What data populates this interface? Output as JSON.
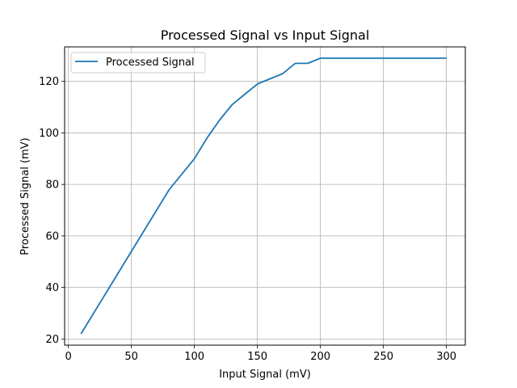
{
  "chart_data": {
    "type": "line",
    "title": "Processed Signal vs Input Signal",
    "xlabel": "Input Signal (mV)",
    "ylabel": "Processed Signal (mV)",
    "xlim": [
      -3,
      315
    ],
    "ylim": [
      17.6,
      133.4
    ],
    "xticks": [
      0,
      50,
      100,
      150,
      200,
      250,
      300
    ],
    "yticks": [
      20,
      40,
      60,
      80,
      100,
      120
    ],
    "grid": true,
    "legend_position": "top-left",
    "series": [
      {
        "name": "Processed Signal",
        "color": "#1f77b4",
        "x": [
          10,
          20,
          30,
          40,
          50,
          60,
          70,
          80,
          90,
          100,
          110,
          120,
          130,
          140,
          150,
          160,
          170,
          180,
          190,
          200,
          210,
          220,
          230,
          240,
          250,
          260,
          270,
          280,
          290,
          300
        ],
        "y": [
          22,
          30,
          38,
          46,
          54,
          62,
          70,
          78,
          84,
          90,
          98,
          105,
          111,
          115,
          119,
          121,
          123,
          127,
          127,
          129,
          129,
          129,
          129,
          129,
          129,
          129,
          129,
          129,
          129,
          129
        ]
      }
    ]
  }
}
